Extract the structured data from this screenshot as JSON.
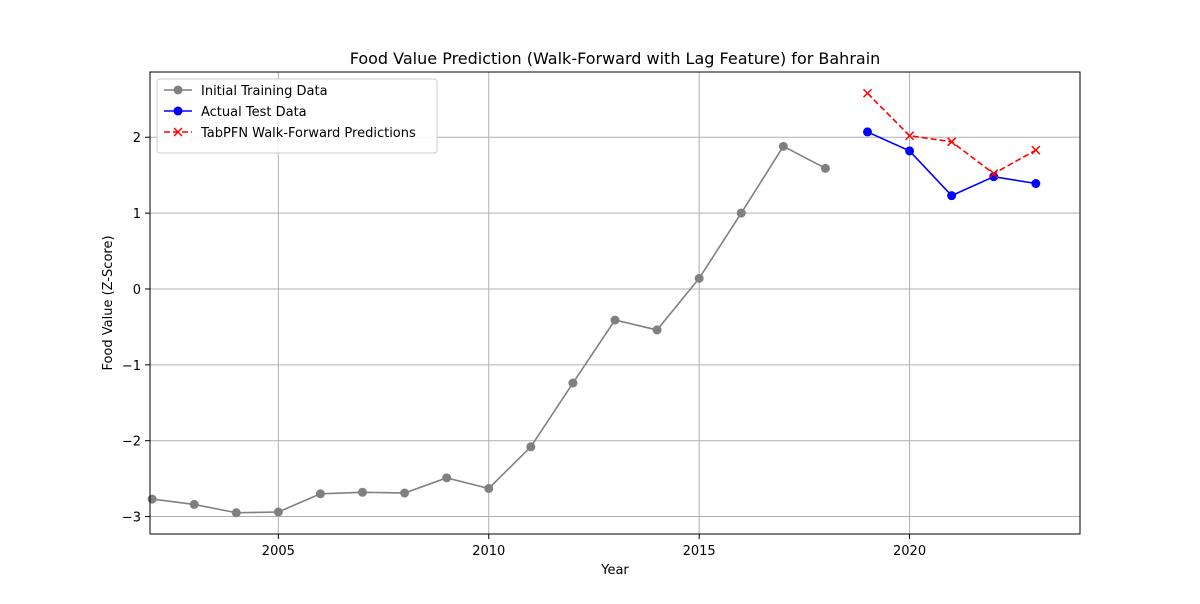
{
  "chart_data": {
    "type": "line",
    "title": "Food Value Prediction (Walk-Forward with Lag Feature) for Bahrain",
    "xlabel": "Year",
    "ylabel": "Food Value (Z-Score)",
    "xlim": [
      2001.95,
      2024.05
    ],
    "ylim": [
      -3.23,
      2.86
    ],
    "xticks": [
      2005,
      2010,
      2015,
      2020
    ],
    "xtick_labels": [
      "2005",
      "2010",
      "2015",
      "2020"
    ],
    "yticks": [
      -3,
      -2,
      -1,
      0,
      1,
      2
    ],
    "ytick_labels": [
      "−3",
      "−2",
      "−1",
      "0",
      "1",
      "2"
    ],
    "grid": true,
    "legend_position": "upper-left",
    "series": [
      {
        "name": "Initial Training Data",
        "color": "#808080",
        "line_style": "solid",
        "marker": "circle",
        "x": [
          2002,
          2003,
          2004,
          2005,
          2006,
          2007,
          2008,
          2009,
          2010,
          2011,
          2012,
          2013,
          2014,
          2015,
          2016,
          2017,
          2018
        ],
        "y": [
          -2.77,
          -2.84,
          -2.95,
          -2.94,
          -2.7,
          -2.68,
          -2.69,
          -2.49,
          -2.63,
          -2.08,
          -1.24,
          -0.41,
          -0.54,
          0.14,
          1.0,
          1.88,
          1.59
        ]
      },
      {
        "name": "Actual Test Data",
        "color": "#0000ff",
        "line_style": "solid",
        "marker": "circle",
        "x": [
          2019,
          2020,
          2021,
          2022,
          2023
        ],
        "y": [
          2.07,
          1.82,
          1.23,
          1.48,
          1.39
        ]
      },
      {
        "name": "TabPFN Walk-Forward Predictions",
        "color": "#ff0000",
        "line_style": "dashed",
        "marker": "x",
        "x": [
          2019,
          2020,
          2021,
          2022,
          2023
        ],
        "y": [
          2.58,
          2.02,
          1.94,
          1.52,
          1.83
        ]
      }
    ]
  }
}
